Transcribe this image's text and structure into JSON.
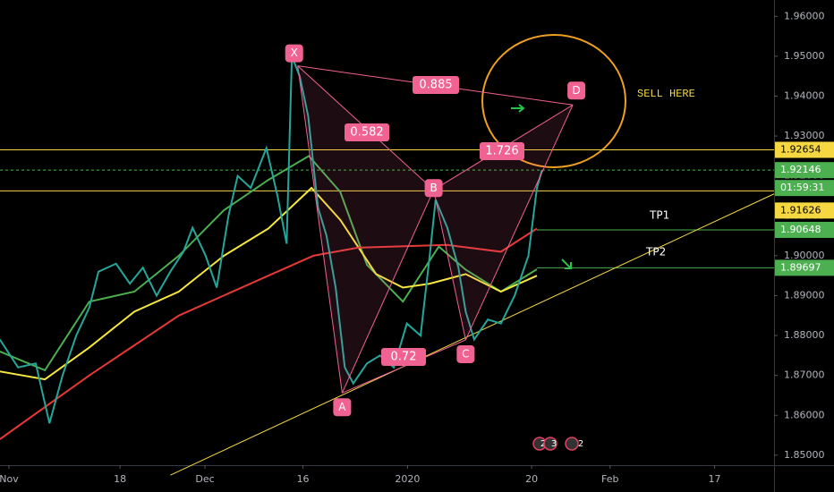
{
  "chart_data": {
    "type": "line",
    "x": [
      -1.4,
      1.4,
      4.1,
      6.2,
      8.2,
      10.3,
      12.3,
      13.7,
      16.4,
      18.5,
      20.5,
      22.6,
      24.7,
      26.7,
      28.1,
      30.1,
      31.8,
      33.6,
      35,
      37,
      39.4,
      41.1,
      42.5,
      43.3,
      44.5,
      45.8,
      47.3,
      48.6,
      50,
      51.4,
      52.7,
      54.8,
      56.8,
      58.9,
      60.9,
      63,
      64.4,
      65.3,
      67.1,
      68.8,
      69.9,
      71.2,
      73.3,
      75.3,
      77.4,
      79.5,
      80.8,
      81.6
    ],
    "series": [
      {
        "color": "#26a69a",
        "values": [
          1.879,
          1.872,
          1.873,
          1.858,
          1.87,
          1.88,
          1.887,
          1.896,
          1.898,
          1.893,
          1.897,
          1.89,
          1.896,
          1.901,
          1.907,
          1.9,
          1.892,
          1.91,
          1.92,
          1.917,
          1.927,
          1.915,
          1.903,
          1.95,
          1.945,
          1.935,
          1.912,
          1.905,
          1.892,
          1.872,
          1.868,
          1.873,
          1.875,
          1.872,
          1.883,
          1.88,
          1.9,
          1.914,
          1.907,
          1.897,
          1.886,
          1.879,
          1.884,
          1.883,
          1.89,
          1.9,
          1.917,
          1.9215
        ]
      }
    ],
    "moving_averages": [
      {
        "color": "#4caf50",
        "x": [
          -1.4,
          5.5,
          12.3,
          19.2,
          26,
          32.9,
          39.7,
          45.9,
          50.7,
          54.8,
          60.3,
          65.8,
          69.9,
          75.3,
          80.8
        ],
        "values": [
          1.876,
          1.8713,
          1.8885,
          1.891,
          1.9,
          1.9114,
          1.919,
          1.925,
          1.916,
          1.8977,
          1.8885,
          1.9023,
          1.8965,
          1.891,
          1.8966
        ]
      },
      {
        "color": "#f5e73b",
        "x": [
          -1.4,
          5.5,
          12.3,
          19.2,
          26,
          32.9,
          39.7,
          46.3,
          50.7,
          56.2,
          60.3,
          64.4,
          69.9,
          75.3,
          80.8
        ],
        "values": [
          1.871,
          1.869,
          1.877,
          1.886,
          1.891,
          1.9,
          1.9068,
          1.917,
          1.909,
          1.8954,
          1.892,
          1.893,
          1.8954,
          1.891,
          1.895
        ]
      },
      {
        "color": "#e53935",
        "x": [
          -1.4,
          12.3,
          26,
          39.7,
          46.6,
          53.4,
          67.1,
          75.3,
          80.8
        ],
        "values": [
          1.854,
          1.87,
          1.885,
          1.895,
          1.9,
          1.902,
          1.9027,
          1.901,
          1.9068
        ]
      }
    ],
    "pattern": {
      "labels": [
        "X",
        "A",
        "B",
        "C",
        "D"
      ],
      "x": [
        44.2,
        51,
        65,
        69.9,
        86.3
      ],
      "values": [
        1.9476,
        1.8656,
        1.9165,
        1.8789,
        1.9378
      ],
      "color": "#f06292"
    },
    "ratios": [
      0.885,
      0.582,
      1.726,
      0.72
    ],
    "trendline": {
      "x": [
        24.7,
        117.1
      ],
      "values": [
        1.845,
        1.9155
      ],
      "color": "#f5d742"
    },
    "levels": [
      {
        "value": 1.92654,
        "color": "#f5d742",
        "text_color": "#000000"
      },
      {
        "value": 1.92146,
        "color": "#4caf50",
        "text_color": "#ffffff"
      },
      {
        "value": 1.91626,
        "color": "#f5d742",
        "text_color": "#000000"
      },
      {
        "value": 1.90648,
        "color": "#4caf50",
        "text_color": "#ffffff"
      },
      {
        "value": 1.89697,
        "color": "#4caf50",
        "text_color": "#ffffff"
      }
    ],
    "countdown": "01:59:31",
    "annotations": [
      "SELL HERE",
      "TP1",
      "TP2"
    ],
    "events": [
      "2",
      "3",
      "2"
    ],
    "xlim": [
      -1.37,
      117.1
    ],
    "ylim": [
      1.8475,
      1.9641
    ],
    "xticks": [
      {
        "value": 0,
        "label": "Nov"
      },
      {
        "value": 17,
        "label": "18"
      },
      {
        "value": 30,
        "label": "Dec"
      },
      {
        "value": 45,
        "label": "16"
      },
      {
        "value": 61,
        "label": "2020"
      },
      {
        "value": 80,
        "label": "20"
      },
      {
        "value": 92,
        "label": "Feb"
      },
      {
        "value": 108,
        "label": "17"
      }
    ],
    "yticks": [
      {
        "value": 1.96,
        "label": "1.96000"
      },
      {
        "value": 1.95,
        "label": "1.95000"
      },
      {
        "value": 1.94,
        "label": "1.94000"
      },
      {
        "value": 1.93,
        "label": "1.93000"
      },
      {
        "value": 1.92,
        "label": "1.92000"
      },
      {
        "value": 1.91,
        "label": "1.91000"
      },
      {
        "value": 1.9,
        "label": "1.90000"
      },
      {
        "value": 1.89,
        "label": "1.89000"
      },
      {
        "value": 1.88,
        "label": "1.88000"
      },
      {
        "value": 1.87,
        "label": "1.87000"
      },
      {
        "value": 1.86,
        "label": "1.86000"
      },
      {
        "value": 1.85,
        "label": "1.85000"
      }
    ]
  }
}
